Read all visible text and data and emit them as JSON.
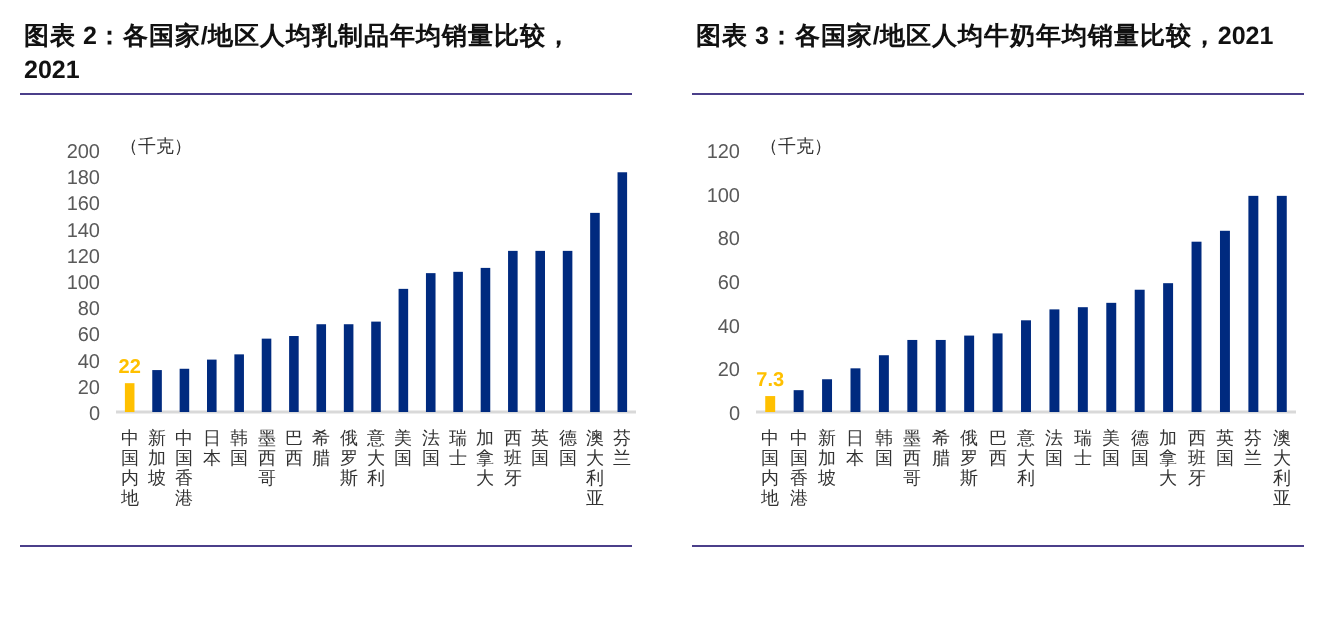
{
  "chart_data": [
    {
      "type": "bar",
      "title": "图表 2：各国家/地区人均乳制品年均销量比较，2021",
      "ylabel": "（千克）",
      "categories": [
        "中国内地",
        "新加坡",
        "中国香港",
        "日本",
        "韩国",
        "墨西哥",
        "巴西",
        "希腊",
        "俄罗斯",
        "意大利",
        "美国",
        "法国",
        "瑞士",
        "加拿大",
        "西班牙",
        "英国",
        "德国",
        "澳大利亚",
        "芬兰"
      ],
      "values": [
        22,
        32,
        33,
        40,
        44,
        56,
        58,
        67,
        67,
        69,
        94,
        106,
        107,
        110,
        123,
        123,
        123,
        152,
        183
      ],
      "colors": [
        "#ffc000",
        "#002a7f",
        "#002a7f",
        "#002a7f",
        "#002a7f",
        "#002a7f",
        "#002a7f",
        "#002a7f",
        "#002a7f",
        "#002a7f",
        "#002a7f",
        "#002a7f",
        "#002a7f",
        "#002a7f",
        "#002a7f",
        "#002a7f",
        "#002a7f",
        "#002a7f",
        "#002a7f"
      ],
      "value_labels": [
        "22",
        null,
        null,
        null,
        null,
        null,
        null,
        null,
        null,
        null,
        null,
        null,
        null,
        null,
        null,
        null,
        null,
        null,
        null
      ],
      "ylim": [
        0,
        200
      ],
      "yticks": [
        0,
        20,
        40,
        60,
        80,
        100,
        120,
        140,
        160,
        180,
        200
      ]
    },
    {
      "type": "bar",
      "title": "图表 3：各国家/地区人均牛奶年均销量比较，2021",
      "ylabel": "（千克）",
      "categories": [
        "中国内地",
        "中国香港",
        "新加坡",
        "日本",
        "韩国",
        "墨西哥",
        "希腊",
        "俄罗斯",
        "巴西",
        "意大利",
        "法国",
        "瑞士",
        "美国",
        "德国",
        "加拿大",
        "西班牙",
        "英国",
        "芬兰",
        "澳大利亚"
      ],
      "values": [
        7.3,
        10,
        15,
        20,
        26,
        33,
        33,
        35,
        36,
        42,
        47,
        48,
        50,
        56,
        59,
        78,
        83,
        99,
        99
      ],
      "colors": [
        "#ffc000",
        "#002a7f",
        "#002a7f",
        "#002a7f",
        "#002a7f",
        "#002a7f",
        "#002a7f",
        "#002a7f",
        "#002a7f",
        "#002a7f",
        "#002a7f",
        "#002a7f",
        "#002a7f",
        "#002a7f",
        "#002a7f",
        "#002a7f",
        "#002a7f",
        "#002a7f",
        "#002a7f"
      ],
      "value_labels": [
        "7.3",
        null,
        null,
        null,
        null,
        null,
        null,
        null,
        null,
        null,
        null,
        null,
        null,
        null,
        null,
        null,
        null,
        null,
        null
      ],
      "ylim": [
        0,
        120
      ],
      "yticks": [
        0,
        20,
        40,
        60,
        80,
        100,
        120
      ]
    }
  ]
}
